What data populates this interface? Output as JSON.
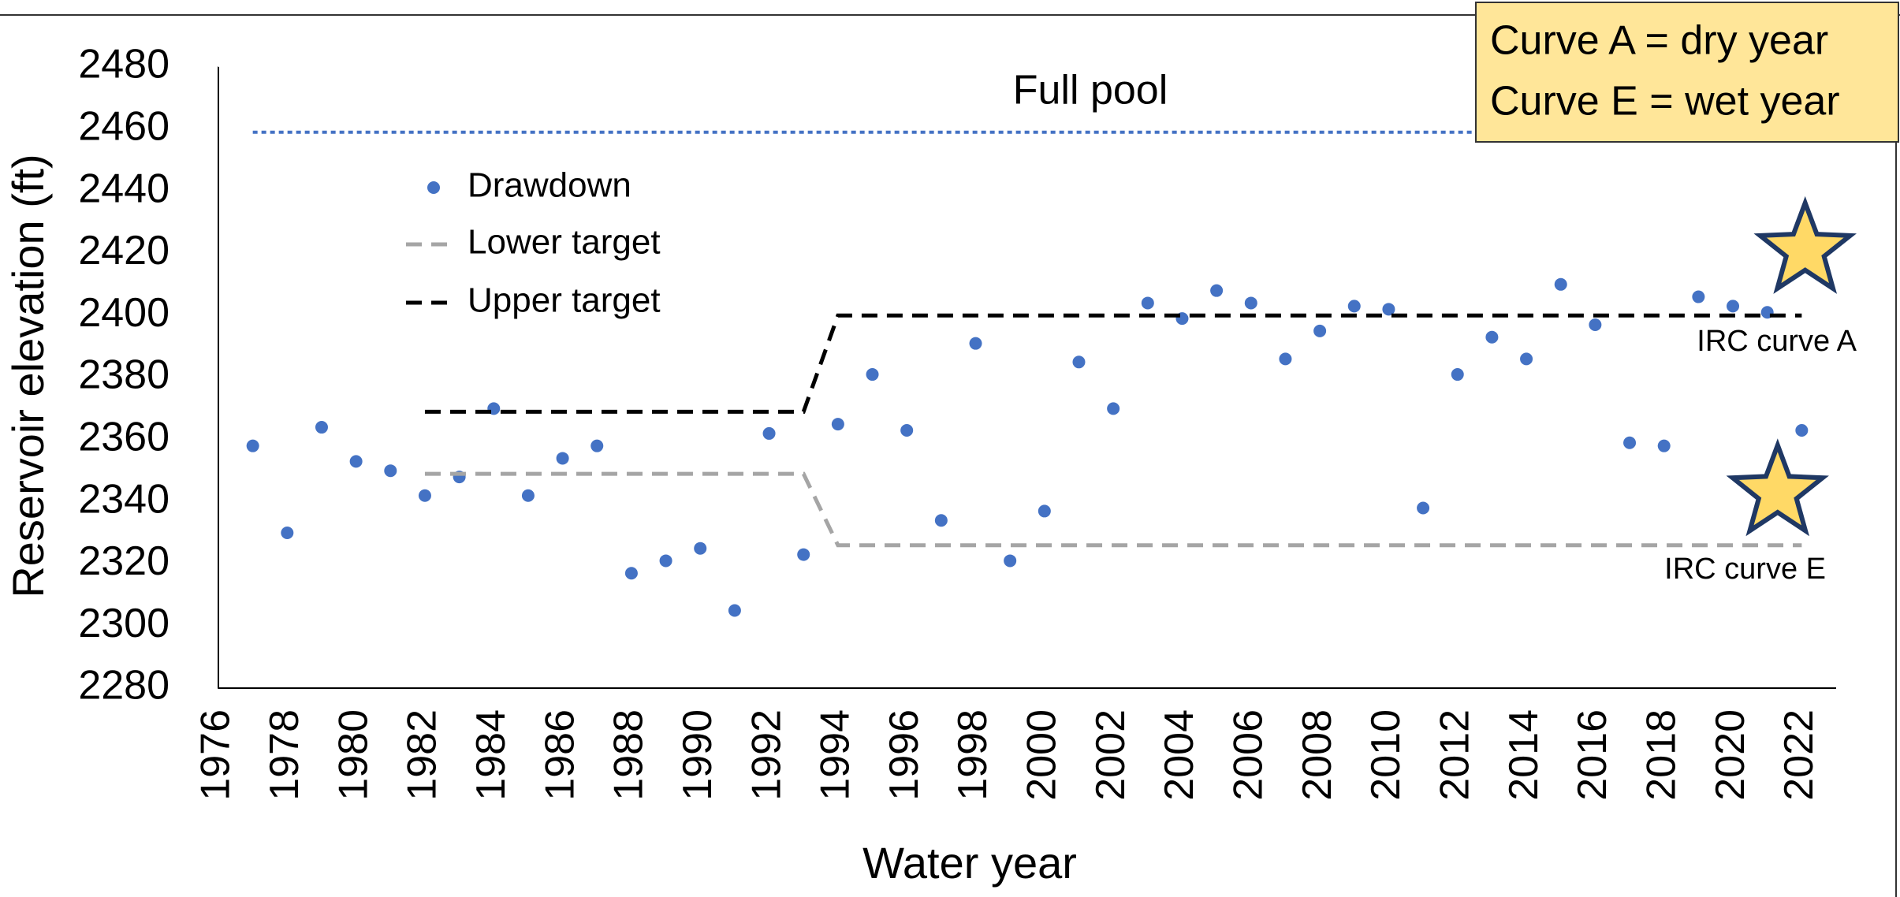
{
  "chart_data": {
    "type": "scatter",
    "x_label": "Water year",
    "y_label": "Reservoir elevation (ft)",
    "xlim": [
      1976,
      2023
    ],
    "ylim": [
      2280,
      2480
    ],
    "xticks": [
      1976,
      1978,
      1980,
      1982,
      1984,
      1986,
      1988,
      1990,
      1992,
      1994,
      1996,
      1998,
      2000,
      2002,
      2004,
      2006,
      2008,
      2010,
      2012,
      2014,
      2016,
      2018,
      2020,
      2022
    ],
    "yticks": [
      2280,
      2300,
      2320,
      2340,
      2360,
      2380,
      2400,
      2420,
      2440,
      2460,
      2480
    ],
    "series": [
      {
        "name": "Drawdown",
        "style": "points",
        "color": "#4472c4",
        "x": [
          1977,
          1978,
          1979,
          1980,
          1981,
          1982,
          1983,
          1984,
          1985,
          1986,
          1987,
          1988,
          1989,
          1990,
          1991,
          1992,
          1993,
          1994,
          1995,
          1996,
          1997,
          1998,
          1999,
          2000,
          2001,
          2002,
          2003,
          2004,
          2005,
          2006,
          2007,
          2008,
          2009,
          2010,
          2011,
          2012,
          2013,
          2014,
          2015,
          2016,
          2017,
          2018,
          2019,
          2020,
          2021,
          2022
        ],
        "values": [
          2358,
          2330,
          2364,
          2353,
          2350,
          2342,
          2348,
          2370,
          2342,
          2354,
          2358,
          2317,
          2321,
          2325,
          2305,
          2362,
          2323,
          2365,
          2381,
          2363,
          2334,
          2391,
          2321,
          2337,
          2385,
          2370,
          2404,
          2399,
          2408,
          2404,
          2386,
          2395,
          2403,
          2402,
          2338,
          2381,
          2393,
          2386,
          2410,
          2397,
          2359,
          2358,
          2406,
          2403,
          2401,
          2363
        ]
      },
      {
        "name": "Lower target",
        "style": "dashed",
        "color": "#a5a5a5",
        "x": [
          1982,
          1993,
          1994,
          2022
        ],
        "values": [
          2349,
          2349,
          2326,
          2326
        ]
      },
      {
        "name": "Upper target",
        "style": "dashed",
        "color": "#000000",
        "x": [
          1982,
          1993,
          1994,
          2022
        ],
        "values": [
          2369,
          2369,
          2400,
          2400
        ]
      }
    ],
    "reference_line": {
      "label": "Full pool",
      "color": "#4472c4",
      "x": [
        1977,
        2022
      ],
      "values": [
        2459,
        2459
      ]
    },
    "markers": [
      {
        "label": "IRC curve A",
        "x": 2022.1,
        "y": 2421,
        "color": "#ffd966"
      },
      {
        "label": "IRC curve E",
        "x": 2021.3,
        "y": 2343,
        "color": "#ffd966"
      }
    ],
    "note_box": {
      "lines": [
        "Curve A = dry year",
        "Curve E = wet year"
      ],
      "color": "#ffe699"
    }
  }
}
